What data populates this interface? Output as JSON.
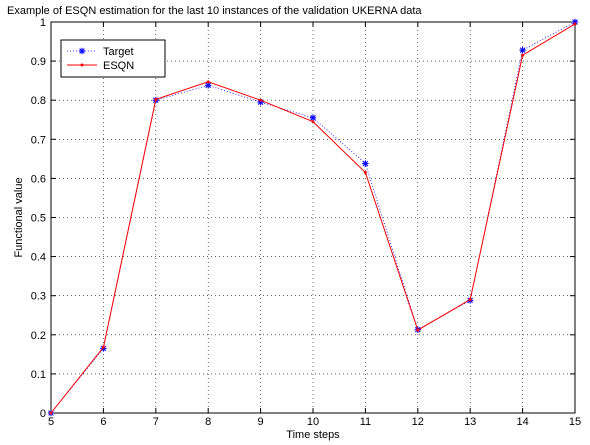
{
  "chart_data": {
    "type": "line",
    "title": "Example of ESQN estimation for the last 10 instances of the validation UKERNA data",
    "xlabel": "Time steps",
    "ylabel": "Functional value",
    "xlim": [
      5,
      15
    ],
    "ylim": [
      0,
      1
    ],
    "xticks": [
      "5",
      "6",
      "7",
      "8",
      "9",
      "10",
      "11",
      "12",
      "13",
      "14",
      "15"
    ],
    "yticks": [
      "0",
      "0.1",
      "0.2",
      "0.3",
      "0.4",
      "0.5",
      "0.6",
      "0.7",
      "0.8",
      "0.9",
      "1"
    ],
    "grid": true,
    "legend_position": "top-left",
    "x": [
      5,
      6,
      7,
      8,
      9,
      10,
      11,
      12,
      13,
      14,
      15
    ],
    "series": [
      {
        "name": "Target",
        "values": [
          0.0,
          0.165,
          0.8,
          0.838,
          0.795,
          0.755,
          0.638,
          0.213,
          0.288,
          0.928,
          1.0
        ],
        "color": "#0000ff",
        "marker": "asterisk",
        "line": "dotted"
      },
      {
        "name": "ESQN",
        "values": [
          0.0,
          0.168,
          0.802,
          0.847,
          0.8,
          0.745,
          0.615,
          0.212,
          0.29,
          0.915,
          0.995
        ],
        "color": "#ff0000",
        "marker": "dot",
        "line": "solid"
      }
    ]
  }
}
